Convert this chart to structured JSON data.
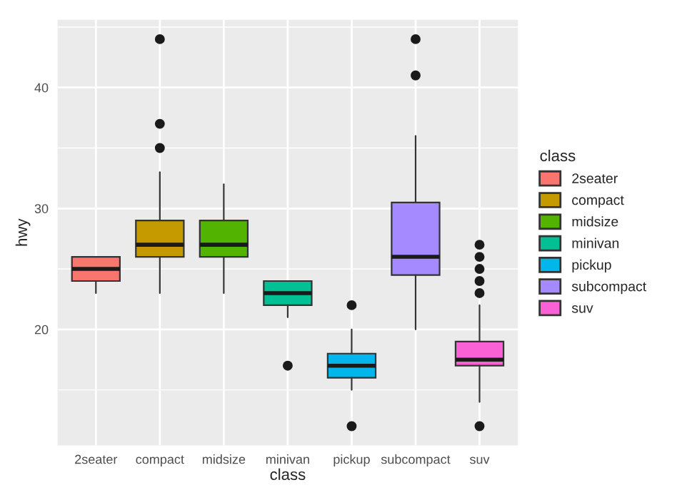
{
  "chart_data": {
    "type": "box",
    "xlabel": "class",
    "ylabel": "hwy",
    "legend_title": "class",
    "legend": "right",
    "grid": true,
    "categories": [
      "2seater",
      "compact",
      "midsize",
      "minivan",
      "pickup",
      "subcompact",
      "suv"
    ],
    "ylim": [
      10.4,
      45.6
    ],
    "yticks": [
      {
        "value": 15,
        "label": null
      },
      20,
      {
        "value": 25,
        "label": null
      },
      30,
      {
        "value": 35,
        "label": null
      },
      40,
      {
        "value": 45,
        "label": null
      }
    ],
    "series": [
      {
        "name": "2seater",
        "color": "#f8766d",
        "boxes": [
          {
            "low": 23,
            "q1": 24,
            "median": 25,
            "q3": 26,
            "high": 26
          },
          null,
          null,
          null,
          null,
          null,
          null
        ]
      },
      {
        "name": "compact",
        "color": "#c49a00",
        "boxes": [
          null,
          {
            "low": 23,
            "q1": 26,
            "median": 27,
            "q3": 29,
            "high": 33,
            "outliers": [
              35,
              37,
              44
            ]
          },
          null,
          null,
          null,
          null,
          null
        ]
      },
      {
        "name": "midsize",
        "color": "#53b400",
        "boxes": [
          null,
          null,
          {
            "low": 23,
            "q1": 26,
            "median": 27,
            "q3": 29,
            "high": 32
          },
          null,
          null,
          null,
          null
        ]
      },
      {
        "name": "minivan",
        "color": "#00c094",
        "boxes": [
          null,
          null,
          null,
          {
            "low": 21,
            "q1": 22,
            "median": 23,
            "q3": 24,
            "high": 24,
            "outliers": [
              17
            ]
          },
          null,
          null,
          null
        ]
      },
      {
        "name": "pickup",
        "color": "#00b6eb",
        "boxes": [
          null,
          null,
          null,
          null,
          {
            "low": 15,
            "q1": 16,
            "median": 17,
            "q3": 18,
            "high": 20,
            "outliers": [
              12,
              22
            ]
          },
          null,
          null
        ]
      },
      {
        "name": "subcompact",
        "color": "#a58aff",
        "boxes": [
          null,
          null,
          null,
          null,
          null,
          {
            "low": 20,
            "q1": 24.5,
            "median": 26,
            "q3": 30.5,
            "high": 36,
            "outliers": [
              41,
              44
            ]
          },
          null
        ]
      },
      {
        "name": "suv",
        "color": "#fb61d7",
        "boxes": [
          null,
          null,
          null,
          null,
          null,
          null,
          {
            "low": 14,
            "q1": 17,
            "median": 17.5,
            "q3": 19,
            "high": 22,
            "outliers": [
              12,
              23,
              24,
              25,
              26,
              27
            ]
          }
        ]
      }
    ]
  }
}
